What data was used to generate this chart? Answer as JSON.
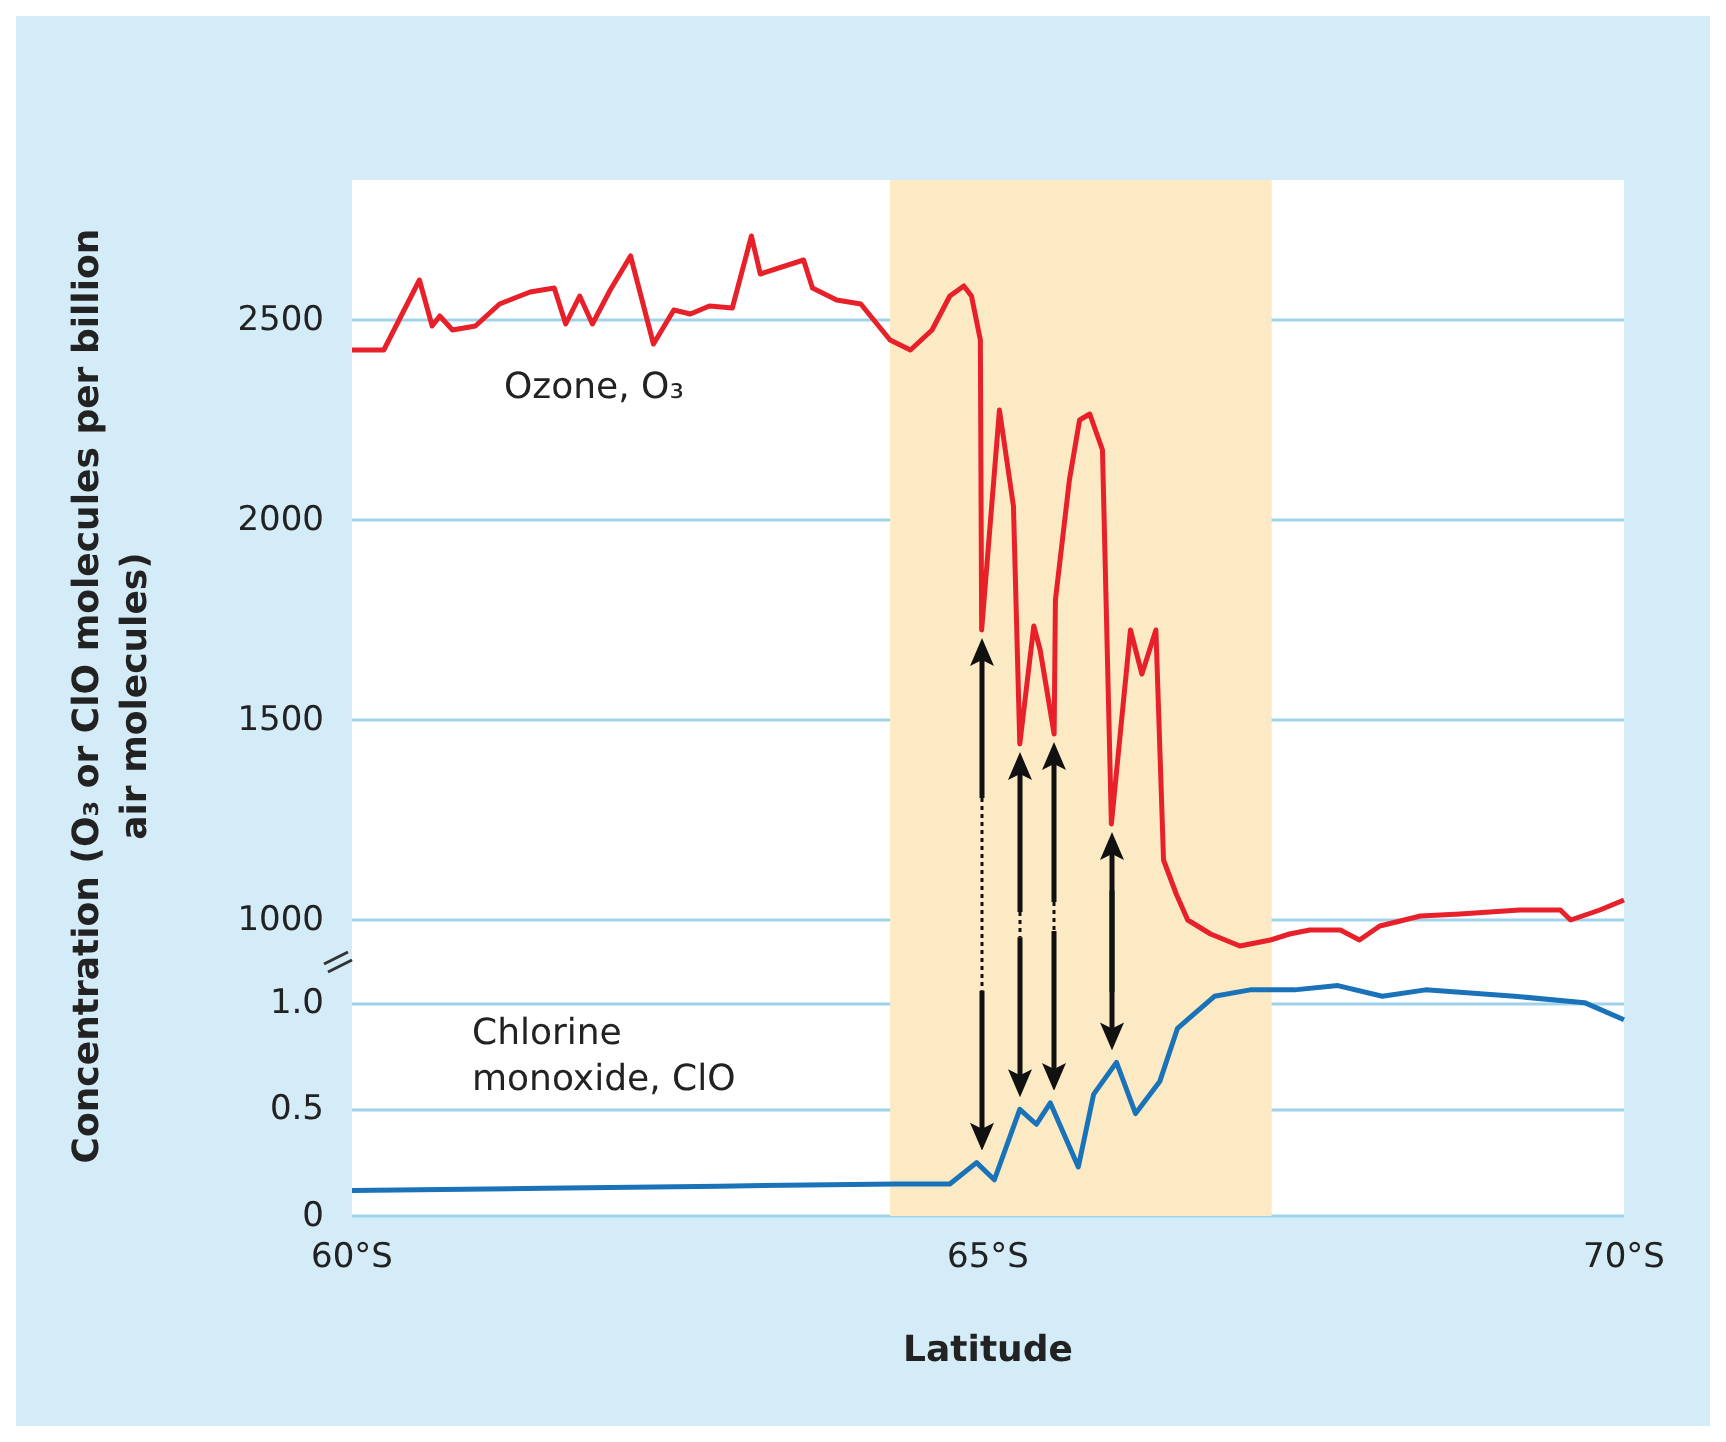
{
  "chart_data": [
    {
      "type": "line",
      "ylabel": "Concentration (O₃ or ClO molecules per billion air molecules)",
      "xlim": [
        60,
        70
      ],
      "ylim": [
        900,
        2850
      ],
      "yticks": [
        1000,
        1500,
        2000,
        2500
      ],
      "grid": "y",
      "tick_labels": "y",
      "bands": [
        {
          "axis": "x",
          "from": 64.23,
          "to": 67.23,
          "color": "#fbeac4"
        }
      ],
      "annotations": [
        "Ozone, O₃"
      ],
      "series": [
        {
          "color": "#e8202a",
          "x": [
            60,
            60.25,
            60.53,
            60.63,
            60.69,
            60.79,
            60.97,
            61.16,
            61.4,
            61.59,
            61.68,
            61.79,
            61.89,
            62.03,
            62.19,
            62.37,
            62.53,
            62.66,
            62.81,
            62.99,
            63.14,
            63.21,
            63.55,
            63.62,
            63.81,
            64.0,
            64.23,
            64.39,
            64.56,
            64.7,
            64.81,
            64.87,
            64.94,
            64.95,
            65.09,
            65.2,
            65.25,
            65.36,
            65.41,
            65.52,
            65.53,
            65.64,
            65.72,
            65.8,
            65.9,
            65.97,
            66.12,
            66.21,
            66.32,
            66.38,
            66.48,
            66.57,
            66.75,
            66.98,
            67.22,
            67.37,
            67.53,
            67.77,
            67.92,
            68.08,
            68.4,
            68.71,
            69.18,
            69.5,
            69.58,
            69.81,
            70
          ],
          "values": [
            2425,
            2425,
            2600,
            2485,
            2510,
            2475,
            2485,
            2540,
            2570,
            2580,
            2490,
            2560,
            2490,
            2575,
            2660,
            2440,
            2525,
            2515,
            2535,
            2530,
            2710,
            2615,
            2650,
            2580,
            2550,
            2540,
            2450,
            2425,
            2475,
            2560,
            2585,
            2560,
            2450,
            1725,
            2275,
            2035,
            1440,
            1735,
            1675,
            1465,
            1800,
            2100,
            2250,
            2265,
            2175,
            1240,
            1725,
            1615,
            1725,
            1150,
            1065,
            1000,
            965,
            935,
            950,
            965,
            975,
            975,
            950,
            985,
            1010,
            1015,
            1025,
            1025,
            1000,
            1025,
            1050
          ]
        }
      ]
    },
    {
      "type": "line",
      "xlabel": "Latitude",
      "xlim": [
        60,
        70
      ],
      "xticks": [
        {
          "value": 60,
          "label": "60°S"
        },
        {
          "value": 65,
          "label": "65°S"
        },
        {
          "value": 70,
          "label": "70°S"
        }
      ],
      "ylim": [
        0,
        1.2
      ],
      "yticks": [
        0,
        0.5,
        {
          "value": 1,
          "label": "1.0"
        }
      ],
      "grid": "y",
      "bands": [
        {
          "axis": "x",
          "from": 64.23,
          "to": 67.23,
          "color": "#fbeac4"
        }
      ],
      "annotations": [
        "Chlorine\nmonoxide, ClO"
      ],
      "series": [
        {
          "color": "#1a73b9",
          "x": [
            60,
            61.51,
            62.89,
            64.28,
            64.7,
            64.91,
            65.05,
            65.25,
            65.38,
            65.49,
            65.71,
            65.83,
            66.01,
            66.16,
            66.35,
            66.49,
            66.78,
            67.06,
            67.41,
            67.75,
            68.1,
            68.44,
            69.14,
            69.69,
            70
          ],
          "values": [
            0.12,
            0.13,
            0.14,
            0.15,
            0.15,
            0.25,
            0.17,
            0.5,
            0.43,
            0.53,
            0.23,
            0.57,
            0.72,
            0.48,
            0.63,
            0.88,
            1.03,
            1.06,
            1.06,
            1.08,
            1.03,
            1.06,
            1.03,
            1.0,
            0.92
          ]
        }
      ]
    }
  ]
}
